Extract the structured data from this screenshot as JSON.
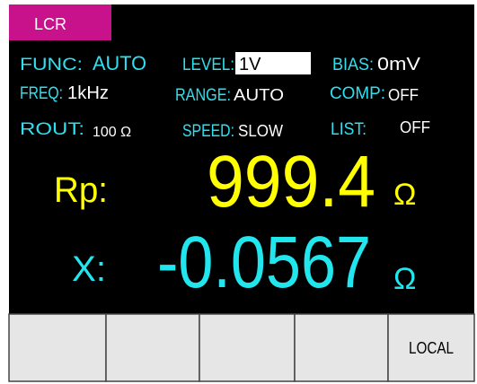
{
  "tab": "LCR",
  "params": [
    [
      {
        "label": "FUNC:",
        "value": "AUTO"
      },
      {
        "label": "LEVEL:",
        "value": "1V"
      },
      {
        "label": "BIAS:",
        "value": "0mV"
      }
    ],
    [
      {
        "label": "FREQ:",
        "value": "1kHz"
      },
      {
        "label": "RANGE:",
        "value": "AUTO"
      },
      {
        "label": "COMP:",
        "value": "OFF"
      }
    ],
    [
      {
        "label": "ROUT:",
        "value": "100 Ω"
      },
      {
        "label": "SPEED:",
        "value": "SLOW"
      },
      {
        "label": "LIST:",
        "value": "OFF"
      }
    ]
  ],
  "readings": [
    {
      "label": "Rp:",
      "value": "999.4",
      "unit": "Ω"
    },
    {
      "label": "X:",
      "value": "-0.0567",
      "unit": "Ω"
    }
  ],
  "softkey": "LOCAL"
}
